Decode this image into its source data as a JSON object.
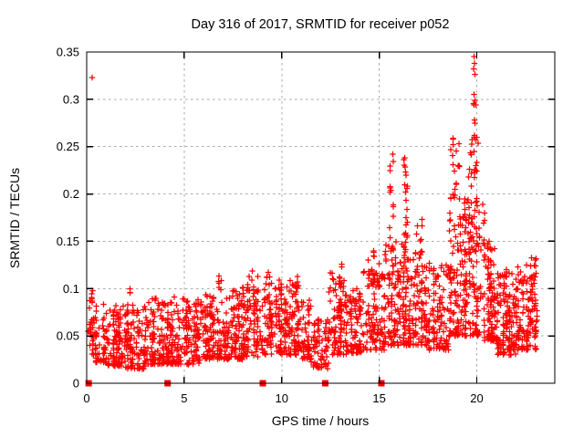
{
  "chart_data": {
    "type": "scatter",
    "title": "Day 316 of 2017, SRMTID for receiver p052",
    "xlabel": "GPS time / hours",
    "ylabel": "SRMTID / TECUs",
    "xlim": [
      0,
      24
    ],
    "ylim": [
      0,
      0.35
    ],
    "xticks": {
      "values": [
        0,
        5,
        10,
        15,
        20
      ],
      "labels": [
        "0",
        "5",
        "10",
        "15",
        "20"
      ]
    },
    "yticks": {
      "values": [
        0,
        0.05,
        0.1,
        0.15,
        0.2,
        0.25,
        0.3,
        0.35
      ],
      "labels": [
        "0",
        "0.05",
        "0.1",
        "0.15",
        "0.2",
        "0.25",
        "0.3",
        "0.35"
      ]
    },
    "grid": true,
    "legend": "none",
    "marker": "plus",
    "colors": {
      "points": "#ff0000",
      "grid": "#a8a8a8",
      "axis": "#000000",
      "background": "#ffffff",
      "text": "#000000"
    },
    "seed": 2017316,
    "baseline_segments": [
      {
        "x0": 0.05,
        "x1": 0.35,
        "n": 28,
        "ymin": 0.03,
        "ymax": 0.105,
        "skew": 1.2
      },
      {
        "x0": 0.35,
        "x1": 1.0,
        "n": 55,
        "ymin": 0.022,
        "ymax": 0.088,
        "skew": 1.5
      },
      {
        "x0": 1.0,
        "x1": 2.0,
        "n": 105,
        "ymin": 0.018,
        "ymax": 0.082,
        "skew": 1.5
      },
      {
        "x0": 2.0,
        "x1": 3.0,
        "n": 105,
        "ymin": 0.015,
        "ymax": 0.085,
        "skew": 1.5
      },
      {
        "x0": 3.0,
        "x1": 4.0,
        "n": 105,
        "ymin": 0.02,
        "ymax": 0.09,
        "skew": 1.5
      },
      {
        "x0": 4.0,
        "x1": 5.0,
        "n": 105,
        "ymin": 0.02,
        "ymax": 0.092,
        "skew": 1.5
      },
      {
        "x0": 5.0,
        "x1": 6.0,
        "n": 105,
        "ymin": 0.02,
        "ymax": 0.09,
        "skew": 1.5
      },
      {
        "x0": 6.0,
        "x1": 7.0,
        "n": 105,
        "ymin": 0.025,
        "ymax": 0.095,
        "skew": 1.5
      },
      {
        "x0": 7.0,
        "x1": 8.0,
        "n": 105,
        "ymin": 0.025,
        "ymax": 0.098,
        "skew": 1.5
      },
      {
        "x0": 8.0,
        "x1": 9.0,
        "n": 105,
        "ymin": 0.028,
        "ymax": 0.105,
        "skew": 1.5
      },
      {
        "x0": 9.0,
        "x1": 10.0,
        "n": 105,
        "ymin": 0.03,
        "ymax": 0.11,
        "skew": 1.5
      },
      {
        "x0": 10.0,
        "x1": 11.0,
        "n": 105,
        "ymin": 0.03,
        "ymax": 0.105,
        "skew": 1.5
      },
      {
        "x0": 11.0,
        "x1": 11.5,
        "n": 48,
        "ymin": 0.025,
        "ymax": 0.09,
        "skew": 1.5
      },
      {
        "x0": 11.5,
        "x1": 12.4,
        "n": 75,
        "ymin": 0.015,
        "ymax": 0.068,
        "skew": 1.3
      },
      {
        "x0": 12.4,
        "x1": 13.2,
        "n": 85,
        "ymin": 0.03,
        "ymax": 0.112,
        "skew": 1.4
      },
      {
        "x0": 13.2,
        "x1": 14.2,
        "n": 100,
        "ymin": 0.03,
        "ymax": 0.1,
        "skew": 1.5
      },
      {
        "x0": 14.2,
        "x1": 15.3,
        "n": 110,
        "ymin": 0.035,
        "ymax": 0.12,
        "skew": 1.5
      },
      {
        "x0": 15.3,
        "x1": 16.5,
        "n": 135,
        "ymin": 0.04,
        "ymax": 0.15,
        "skew": 1.6
      },
      {
        "x0": 16.5,
        "x1": 17.5,
        "n": 110,
        "ymin": 0.04,
        "ymax": 0.14,
        "skew": 1.6
      },
      {
        "x0": 17.5,
        "x1": 18.6,
        "n": 110,
        "ymin": 0.035,
        "ymax": 0.128,
        "skew": 1.5
      },
      {
        "x0": 18.6,
        "x1": 19.35,
        "n": 90,
        "ymin": 0.05,
        "ymax": 0.18,
        "skew": 1.7
      },
      {
        "x0": 19.35,
        "x1": 20.15,
        "n": 115,
        "ymin": 0.05,
        "ymax": 0.2,
        "skew": 1.8
      },
      {
        "x0": 20.15,
        "x1": 21.0,
        "n": 110,
        "ymin": 0.045,
        "ymax": 0.15,
        "skew": 1.6
      },
      {
        "x0": 21.0,
        "x1": 22.0,
        "n": 120,
        "ymin": 0.03,
        "ymax": 0.118,
        "skew": 1.5
      },
      {
        "x0": 22.0,
        "x1": 23.1,
        "n": 130,
        "ymin": 0.035,
        "ymax": 0.125,
        "skew": 1.5
      }
    ],
    "spike_columns": [
      {
        "x0": 15.5,
        "x1": 15.8,
        "n": 22,
        "ymin": 0.11,
        "ymax": 0.245,
        "skew": 0.9
      },
      {
        "x0": 16.12,
        "x1": 16.48,
        "n": 28,
        "ymin": 0.11,
        "ymax": 0.243,
        "skew": 0.9
      },
      {
        "x0": 16.8,
        "x1": 17.3,
        "n": 10,
        "ymin": 0.13,
        "ymax": 0.175,
        "skew": 1.0
      },
      {
        "x0": 18.65,
        "x1": 19.15,
        "n": 26,
        "ymin": 0.15,
        "ymax": 0.276,
        "skew": 0.9
      },
      {
        "x0": 19.55,
        "x1": 20.05,
        "n": 30,
        "ymin": 0.15,
        "ymax": 0.26,
        "skew": 0.9
      },
      {
        "x0": 19.78,
        "x1": 19.98,
        "n": 12,
        "ymin": 0.2,
        "ymax": 0.3,
        "skew": 0.9
      },
      {
        "x0": 12.5,
        "x1": 13.1,
        "n": 10,
        "ymin": 0.1,
        "ymax": 0.135,
        "skew": 1.0
      },
      {
        "x0": 9.2,
        "x1": 9.4,
        "n": 4,
        "ymin": 0.11,
        "ymax": 0.131,
        "skew": 1.0
      },
      {
        "x0": 22.7,
        "x1": 23.1,
        "n": 8,
        "ymin": 0.1,
        "ymax": 0.133,
        "skew": 1.0
      },
      {
        "x0": 14.4,
        "x1": 15.3,
        "n": 12,
        "ymin": 0.1,
        "ymax": 0.143,
        "skew": 1.0
      },
      {
        "x0": 20.15,
        "x1": 20.45,
        "n": 8,
        "ymin": 0.13,
        "ymax": 0.2,
        "skew": 1.0
      },
      {
        "x0": 6.4,
        "x1": 7.1,
        "n": 6,
        "ymin": 0.095,
        "ymax": 0.115,
        "skew": 1.0
      },
      {
        "x0": 8.3,
        "x1": 9.0,
        "n": 6,
        "ymin": 0.095,
        "ymax": 0.12,
        "skew": 1.0
      },
      {
        "x0": 10.3,
        "x1": 11.0,
        "n": 6,
        "ymin": 0.095,
        "ymax": 0.115,
        "skew": 1.0
      },
      {
        "x0": 2.2,
        "x1": 2.5,
        "n": 3,
        "ymin": 0.095,
        "ymax": 0.108,
        "skew": 1.0
      },
      {
        "x0": 21.3,
        "x1": 21.6,
        "n": 5,
        "ymin": 0.1,
        "ymax": 0.125,
        "skew": 1.0
      }
    ],
    "outlier_points": [
      {
        "x": 0.29,
        "y": 0.323
      },
      {
        "x": 19.86,
        "y": 0.345
      },
      {
        "x": 19.88,
        "y": 0.338
      },
      {
        "x": 19.84,
        "y": 0.332
      },
      {
        "x": 19.9,
        "y": 0.3265
      },
      {
        "x": 19.87,
        "y": 0.305
      }
    ],
    "axis_gap_markers_x": [
      0.1,
      4.15,
      9.03,
      12.23,
      15.11
    ],
    "gap_marker_shape": "filled-square"
  }
}
